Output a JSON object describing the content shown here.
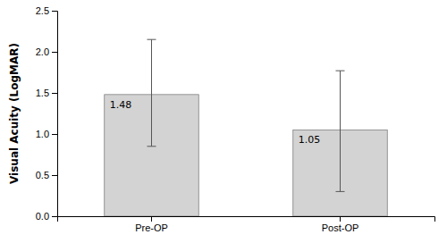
{
  "chart_data": {
    "type": "bar",
    "categories": [
      "Pre-OP",
      "Post-OP"
    ],
    "values": [
      1.48,
      1.05
    ],
    "errors_upper": [
      0.67,
      0.72
    ],
    "errors_lower": [
      0.63,
      0.75
    ],
    "color": "#d3d3d3",
    "ylabel": "Visual Acuity (LogMAR)",
    "ylim": [
      0,
      2.5
    ],
    "yticks": [
      {
        "value": 0,
        "label": "0.0"
      },
      0.5,
      {
        "value": 1,
        "label": "1.0"
      },
      1.5,
      {
        "value": 2,
        "label": "2.0"
      },
      2.5
    ],
    "data_labels": true,
    "grid": false
  }
}
